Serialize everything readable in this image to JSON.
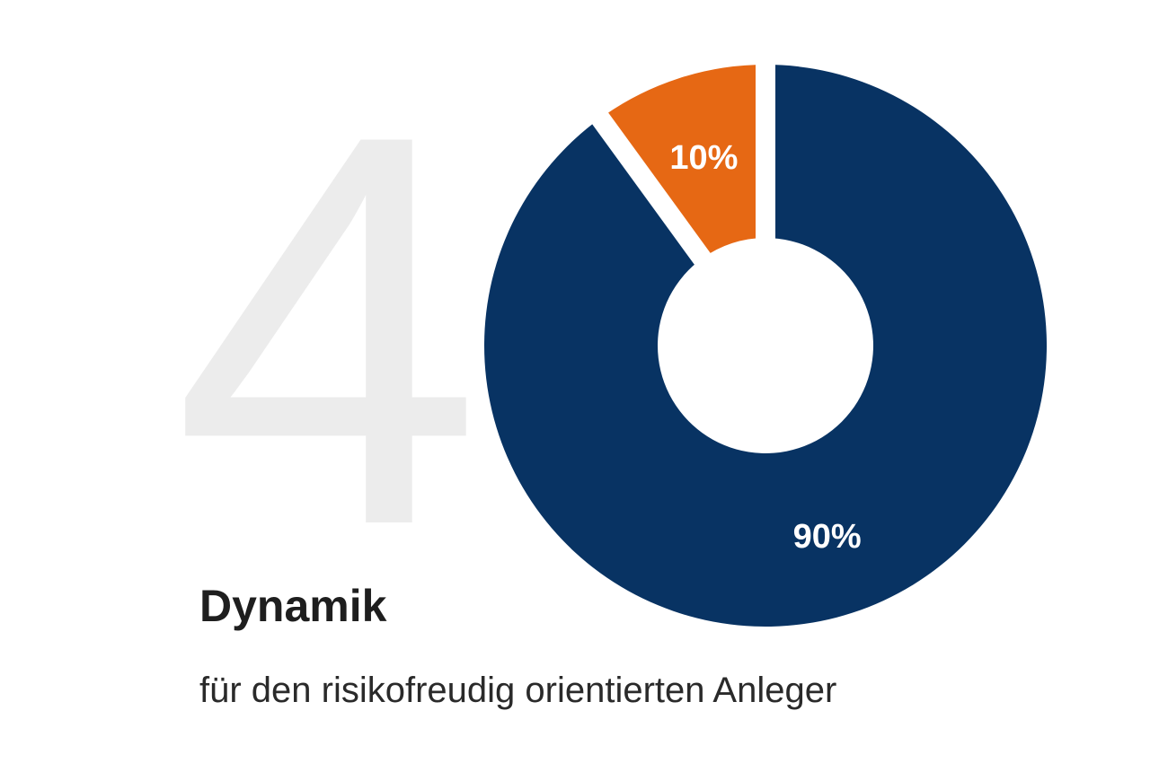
{
  "chart_data": {
    "type": "donut",
    "background_number": "4",
    "title": "Dynamik",
    "subtitle": "für den risikofreudig orientierten Anleger",
    "values": [
      90,
      10
    ],
    "value_labels": [
      "90%",
      "10%"
    ],
    "colors": [
      "#083363",
      "#e66814"
    ]
  }
}
